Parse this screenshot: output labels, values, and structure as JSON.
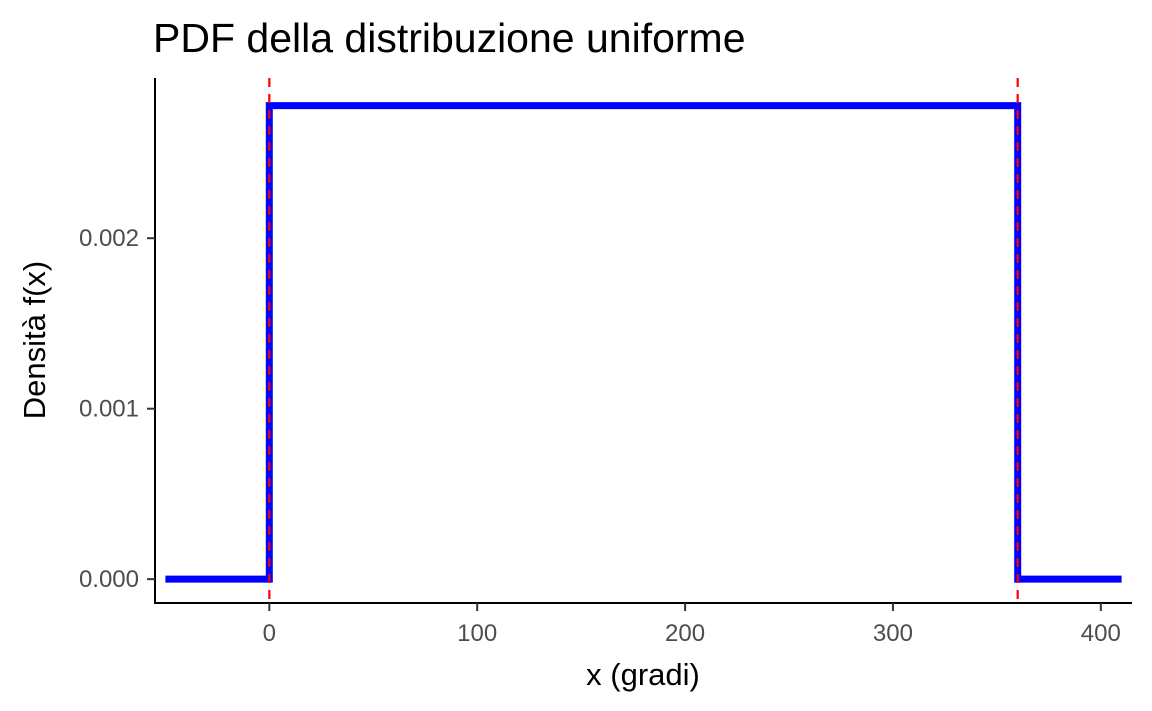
{
  "chart_data": {
    "type": "line",
    "title": "PDF della distribuzione uniforme",
    "xlabel": "x (gradi)",
    "ylabel": "Densità f(x)",
    "xlim": [
      -55,
      415
    ],
    "ylim": [
      -0.00014,
      0.00294
    ],
    "x_ticks": [
      0,
      100,
      200,
      300,
      400
    ],
    "x_tick_labels": [
      "0",
      "100",
      "200",
      "300",
      "400"
    ],
    "y_ticks": [
      0,
      0.001,
      0.002
    ],
    "y_tick_labels": [
      "0.000",
      "0.001",
      "0.002"
    ],
    "grid": false,
    "legend": "none",
    "series": [
      {
        "color": "#0000ff",
        "x": [
          -50,
          0,
          0,
          360,
          360,
          410
        ],
        "y": [
          0,
          0,
          0.0027778,
          0.0027778,
          0,
          0
        ]
      }
    ],
    "reference_lines": [
      {
        "axis": "x",
        "value": 0,
        "style": "dashed",
        "color": "#ff0000"
      },
      {
        "axis": "x",
        "value": 360,
        "style": "dashed",
        "color": "#ff0000"
      }
    ]
  }
}
